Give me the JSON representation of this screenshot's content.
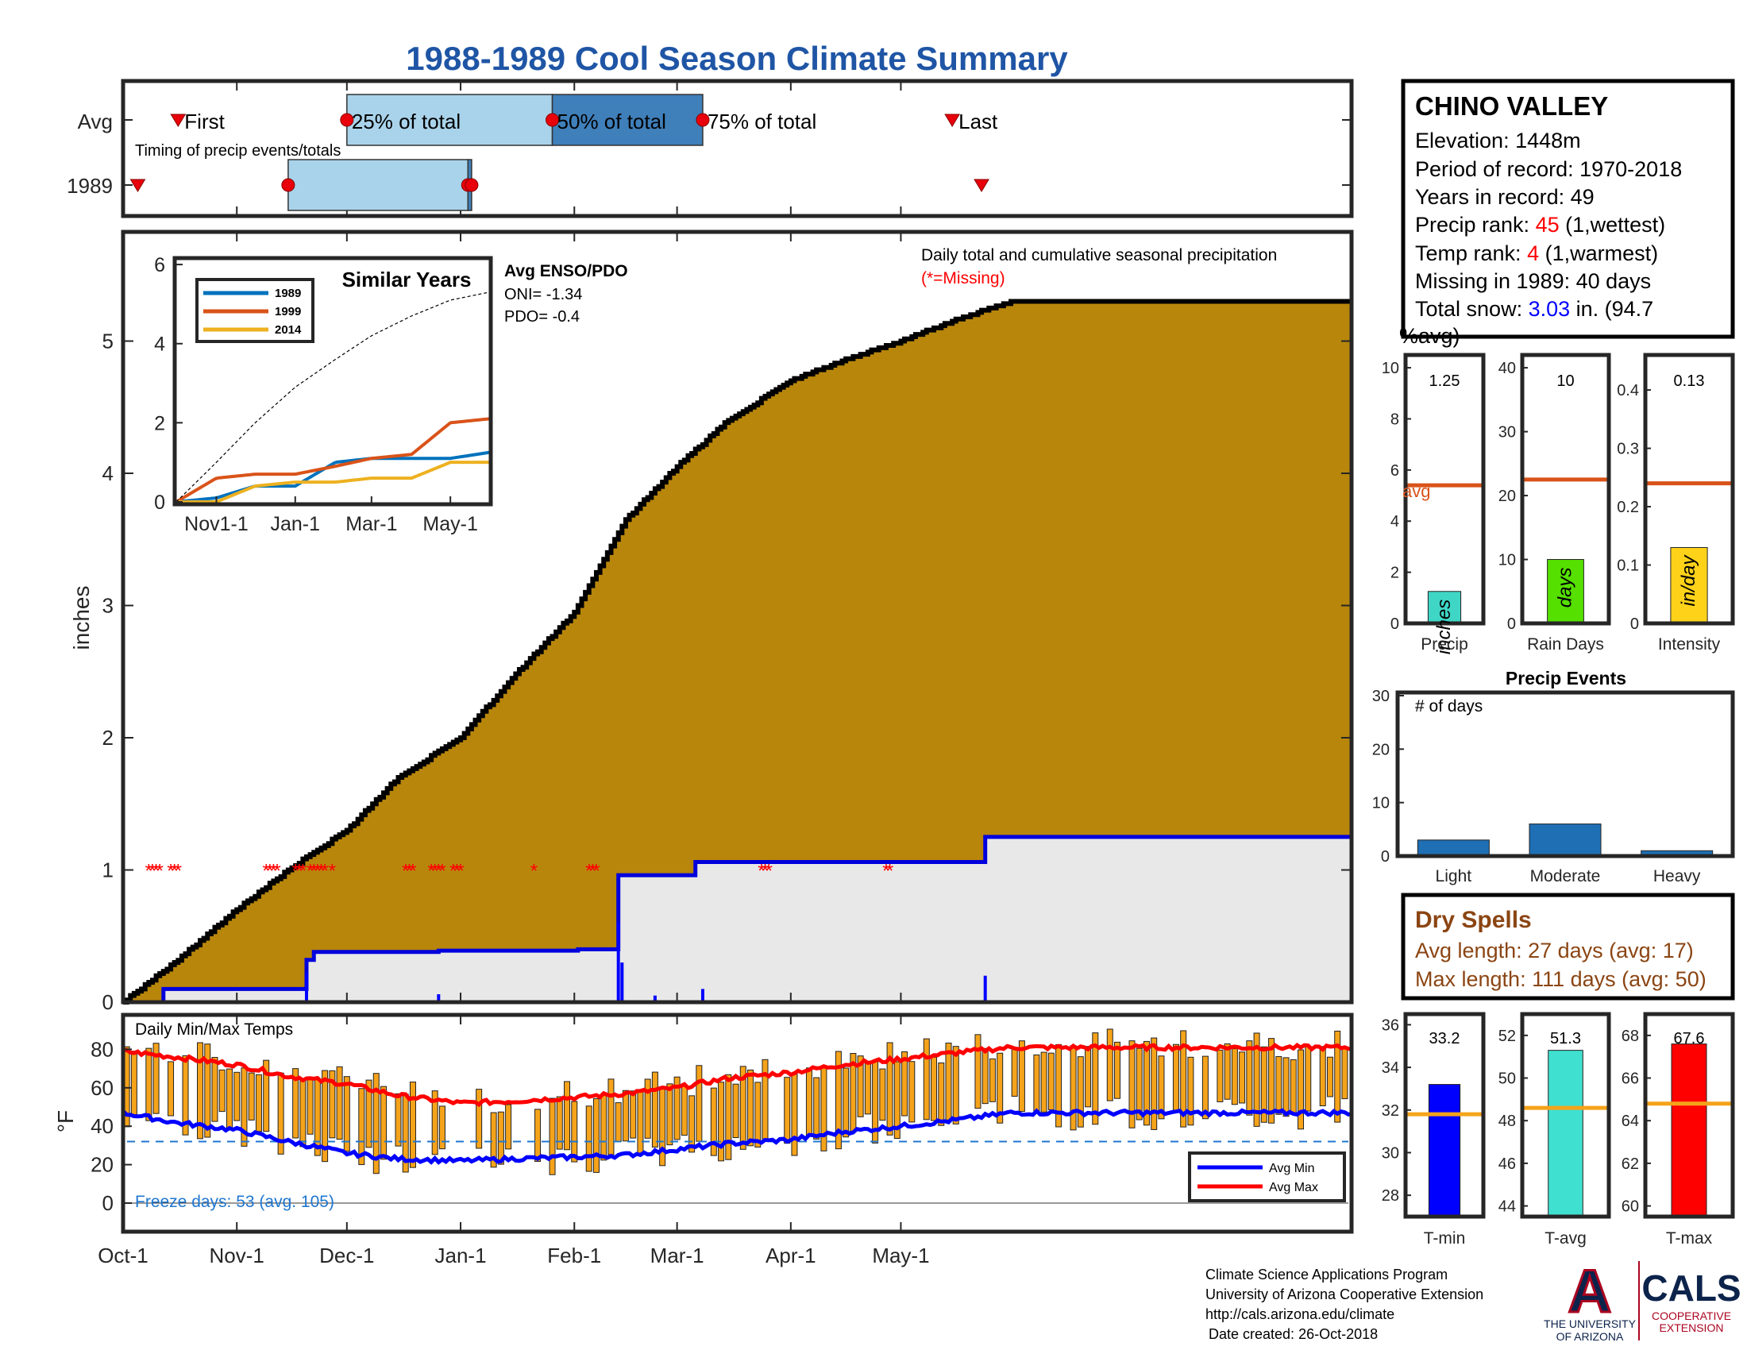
{
  "title": "1988-1989 Cool Season Climate Summary",
  "timing": {
    "row_labels": [
      "Avg",
      "1989"
    ],
    "caption": "Timing of precip events/totals",
    "first_label": "First",
    "p25_label": "25% of total",
    "p50_label": "50% of total",
    "p75_label": "75% of total",
    "last_label": "Last",
    "avg": {
      "first": "1988-10-16",
      "p25": "1988-12-01",
      "p50": "1989-01-26",
      "p75": "1989-03-08",
      "last": "1989-05-15"
    },
    "year": {
      "first": "1988-10-05",
      "p25": "1988-11-15",
      "p50": "1989-01-03",
      "p75": "1989-01-04",
      "last": "1989-05-23"
    },
    "colors": {
      "p25_box": "#a9d3ea",
      "p50_box": "#3f7fba",
      "marker": "#e8000b"
    }
  },
  "station": {
    "name": "CHINO VALLEY",
    "elevation": "Elevation: 1448m",
    "period": "Period of record: 1970-2018",
    "years": "Years in record: 49",
    "precip_rank_label": "Precip rank: ",
    "precip_rank_value": "45",
    "precip_rank_suffix": " (1,wettest)",
    "temp_rank_label": "Temp rank: ",
    "temp_rank_value": "4",
    "temp_rank_suffix": " (1,warmest)",
    "missing": "Missing in 1989: 40 days",
    "snow_label": "Total snow: ",
    "snow_value": "3.03",
    "snow_suffix": " in. (94.7",
    "snow_suffix2": "%avg)"
  },
  "precip_panel": {
    "ylabel": "inches",
    "note": "Daily total and cumulative seasonal precipitation",
    "missing_note": "(*=Missing)",
    "y_ticks": [
      "0",
      "1",
      "2",
      "3",
      "4",
      "5"
    ],
    "colors": {
      "avg_fill": "#b8860b",
      "avg_line": "#000000",
      "year_line": "#0000dd",
      "year_fill": "#e8e8e8",
      "missing": "#ff0000"
    }
  },
  "inset": {
    "title": "Similar Years",
    "enso_title": "Avg ENSO/PDO",
    "oni": "ONI= -1.34",
    "pdo": "PDO= -0.4",
    "y_ticks": [
      "0",
      "2",
      "4",
      "6"
    ],
    "x_ticks": [
      "Nov1-1",
      "Jan-1",
      "Mar-1",
      "May-1"
    ],
    "legend": [
      {
        "name": "1989",
        "color": "#0072bd"
      },
      {
        "name": "1999",
        "color": "#d95319"
      },
      {
        "name": "2014",
        "color": "#edb120"
      }
    ]
  },
  "temp_panel": {
    "title": "Daily Min/Max Temps",
    "ylabel": "°F",
    "y_ticks": [
      "0",
      "20",
      "40",
      "60",
      "80"
    ],
    "freeze": "Freeze days: 53 (avg. 105)",
    "legend_min": "Avg Min",
    "legend_max": "Avg Max",
    "freeze_line_value": 32,
    "colors": {
      "bars": "#f5a31a",
      "avg_min": "#0000ff",
      "avg_max": "#ff0000",
      "freeze": "#1f77d0"
    }
  },
  "x_ticks": [
    "Oct-1",
    "Nov-1",
    "Dec-1",
    "Jan-1",
    "Feb-1",
    "Mar-1",
    "Apr-1",
    "May-1"
  ],
  "small_bars": [
    {
      "label": "Precip",
      "value_text": "1.25",
      "unit": "inches",
      "avg_label": "avg",
      "color": "#3fd6c6",
      "y_ticks": [
        "0",
        "2",
        "4",
        "6",
        "8",
        "10"
      ]
    },
    {
      "label": "Rain Days",
      "value_text": "10",
      "unit": "days",
      "color": "#55e000",
      "y_ticks": [
        "0",
        "10",
        "20",
        "30",
        "40"
      ]
    },
    {
      "label": "Intensity",
      "value_text": "0.13",
      "unit": "in/day",
      "color": "#ffd21a",
      "y_ticks": [
        "0",
        "0.1",
        "0.2",
        "0.3",
        "0.4"
      ]
    }
  ],
  "events": {
    "title": "Precip Events",
    "ylabel": "# of days",
    "y_ticks": [
      "0",
      "10",
      "20",
      "30"
    ],
    "categories": [
      "Light",
      "Moderate",
      "Heavy"
    ],
    "color": "#1f6fb5"
  },
  "dry_spells": {
    "title": "Dry Spells",
    "avg": "Avg length: 27 days (avg: 17)",
    "max": "Max length: 111 days (avg: 50)",
    "color": "#8b4513"
  },
  "temp_bars": [
    {
      "label": "T-min",
      "value_text": "33.2",
      "color": "#0000ff",
      "y_ticks": [
        "28",
        "30",
        "32",
        "34",
        "36"
      ]
    },
    {
      "label": "T-avg",
      "value_text": "51.3",
      "color": "#40e0d0",
      "y_ticks": [
        "44",
        "46",
        "48",
        "50",
        "52"
      ]
    },
    {
      "label": "T-max",
      "value_text": "67.6",
      "color": "#ff0000",
      "y_ticks": [
        "60",
        "62",
        "64",
        "66",
        "68"
      ]
    }
  ],
  "footer": {
    "line1": "Climate Science Applications Program",
    "line2": "University of Arizona Cooperative Extension",
    "line3": "http://cals.arizona.edu/climate",
    "line4": "Date created: 26-Oct-2018",
    "logo_letter": "A",
    "logo_text1": "THE UNIVERSITY",
    "logo_text2": "OF ARIZONA",
    "cals": "CALS",
    "cals_sub1": "COOPERATIVE",
    "cals_sub2": "EXTENSION"
  },
  "chart_data": [
    {
      "type": "area",
      "title": "Daily total and cumulative seasonal precipitation",
      "ylabel": "inches",
      "ylim": [
        0,
        5.8
      ],
      "x_dates": [
        "1988-10-01",
        "1988-10-15",
        "1988-11-01",
        "1988-11-15",
        "1988-12-01",
        "1988-12-15",
        "1989-01-01",
        "1989-01-15",
        "1989-02-01",
        "1989-02-15",
        "1989-03-01",
        "1989-03-15",
        "1989-04-01",
        "1989-04-15",
        "1989-05-01",
        "1989-05-15",
        "1989-05-31"
      ],
      "series": [
        {
          "name": "Avg",
          "values": [
            0.0,
            0.3,
            0.7,
            1.0,
            1.3,
            1.7,
            2.0,
            2.45,
            2.95,
            3.65,
            4.05,
            4.4,
            4.7,
            4.85,
            5.0,
            5.15,
            5.3
          ]
        },
        {
          "name": "1989",
          "values": [
            0.0,
            0.1,
            0.1,
            0.38,
            0.38,
            0.4,
            0.4,
            0.96,
            1.06,
            1.06,
            1.06,
            1.06,
            1.06,
            1.06,
            1.06,
            1.25,
            1.25
          ]
        }
      ],
      "missing_dates": [
        "1988-10-08",
        "1988-10-09",
        "1988-10-10",
        "1988-10-11",
        "1988-10-14",
        "1988-10-15",
        "1988-10-16",
        "1988-11-09",
        "1988-11-10",
        "1988-11-11",
        "1988-11-12",
        "1988-11-17",
        "1988-11-18",
        "1988-11-19",
        "1988-11-21",
        "1988-11-22",
        "1988-11-23",
        "1988-11-24",
        "1988-11-25",
        "1988-11-27",
        "1988-12-17",
        "1988-12-18",
        "1988-12-19",
        "1988-12-24",
        "1988-12-25",
        "1988-12-26",
        "1988-12-27",
        "1988-12-30",
        "1988-12-31",
        "1989-01-01",
        "1989-01-21",
        "1989-02-05",
        "1989-02-06",
        "1989-02-07",
        "1989-03-24",
        "1989-03-25",
        "1989-03-26",
        "1989-04-27",
        "1989-04-28"
      ]
    },
    {
      "type": "line",
      "title": "Similar Years",
      "x_ticks": [
        "Nov1-1",
        "Jan-1",
        "Mar-1",
        "May-1"
      ],
      "ylim": [
        0,
        6
      ],
      "x_dates": [
        "1988-10-01",
        "1988-11-01",
        "1988-12-01",
        "1989-01-01",
        "1989-02-01",
        "1989-03-01",
        "1989-04-01",
        "1989-05-01",
        "1989-05-31"
      ],
      "series": [
        {
          "name": "1989",
          "values": [
            0.0,
            0.1,
            0.4,
            0.4,
            1.0,
            1.1,
            1.1,
            1.1,
            1.25
          ]
        },
        {
          "name": "1999",
          "values": [
            0.0,
            0.6,
            0.7,
            0.7,
            0.9,
            1.1,
            1.2,
            2.0,
            2.1
          ]
        },
        {
          "name": "2014",
          "values": [
            0.0,
            0.0,
            0.4,
            0.5,
            0.5,
            0.6,
            0.6,
            1.0,
            1.0
          ]
        },
        {
          "name": "Avg",
          "values": [
            0.0,
            1.0,
            2.0,
            2.9,
            3.6,
            4.2,
            4.7,
            5.1,
            5.3
          ]
        }
      ]
    },
    {
      "type": "line",
      "title": "Daily Min/Max Temps",
      "ylabel": "°F",
      "ylim": [
        -5,
        92
      ],
      "x_dates": [
        "1988-10-01",
        "1988-10-15",
        "1988-11-01",
        "1988-11-15",
        "1988-12-01",
        "1988-12-15",
        "1989-01-01",
        "1989-01-15",
        "1989-02-01",
        "1989-02-15",
        "1989-03-01",
        "1989-03-15",
        "1989-04-01",
        "1989-04-15",
        "1989-05-01",
        "1989-05-15",
        "1989-05-31"
      ],
      "series": [
        {
          "name": "Avg Max",
          "values": [
            79,
            76,
            72,
            66,
            62,
            56,
            52,
            53,
            55,
            57,
            60,
            65,
            68,
            72,
            75,
            78,
            81
          ]
        },
        {
          "name": "Avg Min",
          "values": [
            47,
            42,
            38,
            32,
            26,
            23,
            22,
            23,
            24,
            25,
            28,
            31,
            33,
            37,
            40,
            43,
            47
          ]
        }
      ],
      "freeze_line": 32
    },
    {
      "type": "bar",
      "title": "Precip Events",
      "ylabel": "# of days",
      "categories": [
        "Light",
        "Moderate",
        "Heavy"
      ],
      "values": [
        3,
        6,
        1
      ],
      "ylim": [
        0,
        30
      ]
    },
    {
      "type": "bar",
      "categories": [
        "Precip",
        "Rain Days",
        "Intensity"
      ],
      "series": [
        {
          "name": "1989",
          "values": [
            1.25,
            10,
            0.13
          ]
        },
        {
          "name": "avg",
          "values": [
            5.4,
            22.5,
            0.24
          ]
        }
      ],
      "ylims": [
        [
          0,
          10.5
        ],
        [
          0,
          42
        ],
        [
          0,
          0.46
        ]
      ]
    },
    {
      "type": "bar",
      "categories": [
        "T-min",
        "T-avg",
        "T-max"
      ],
      "series": [
        {
          "name": "1989",
          "values": [
            33.2,
            51.3,
            67.6
          ]
        },
        {
          "name": "avg",
          "values": [
            31.8,
            48.6,
            64.8
          ]
        }
      ],
      "ylims": [
        [
          27,
          36.5
        ],
        [
          43.5,
          53
        ],
        [
          59.5,
          69
        ]
      ]
    }
  ]
}
